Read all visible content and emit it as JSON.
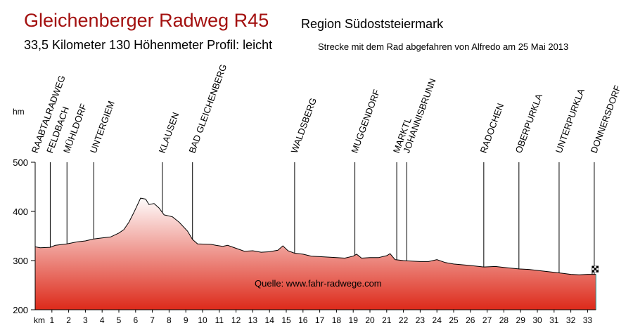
{
  "header": {
    "title": "Gleichenberger Radweg R45",
    "region": "Region Südoststeiermark",
    "subtitle": "33,5 Kilometer  130 Höhenmeter Profil: leicht",
    "ride_note": "Strecke mit dem Rad abgefahren von Alfredo am 25 Mai 2013"
  },
  "chart_data": {
    "type": "area",
    "title": "Gleichenberger Radweg R45",
    "xlabel": "km",
    "ylabel": "hm",
    "xlim": [
      0,
      33.5
    ],
    "ylim": [
      200,
      500
    ],
    "yticks": [
      200,
      300,
      400,
      500
    ],
    "xticks": [
      1,
      2,
      3,
      4,
      5,
      6,
      7,
      8,
      9,
      10,
      11,
      12,
      13,
      14,
      15,
      16,
      17,
      18,
      19,
      20,
      21,
      22,
      23,
      24,
      25,
      26,
      27,
      28,
      29,
      30,
      31,
      32,
      33
    ],
    "source_note": "Quelle: www.fahr-radwege.com",
    "colors": {
      "fill_bottom": "#dd2a1a",
      "fill_top": "#ffffff",
      "title": "#a3100f"
    },
    "profile": [
      [
        0,
        328
      ],
      [
        0.3,
        326
      ],
      [
        0.9,
        327
      ],
      [
        1.2,
        331
      ],
      [
        1.9,
        334
      ],
      [
        2.5,
        338
      ],
      [
        3,
        340
      ],
      [
        3.5,
        344
      ],
      [
        4,
        346
      ],
      [
        4.5,
        348
      ],
      [
        5,
        356
      ],
      [
        5.3,
        363
      ],
      [
        5.6,
        378
      ],
      [
        5.9,
        398
      ],
      [
        6.2,
        420
      ],
      [
        6.3,
        427
      ],
      [
        6.6,
        425
      ],
      [
        6.8,
        414
      ],
      [
        7.1,
        416
      ],
      [
        7.4,
        407
      ],
      [
        7.7,
        393
      ],
      [
        8.2,
        389
      ],
      [
        8.6,
        378
      ],
      [
        9.1,
        360
      ],
      [
        9.4,
        343
      ],
      [
        9.7,
        334
      ],
      [
        10.5,
        333
      ],
      [
        10.8,
        331
      ],
      [
        11.2,
        329
      ],
      [
        11.5,
        331
      ],
      [
        12,
        325
      ],
      [
        12.5,
        319
      ],
      [
        13,
        320
      ],
      [
        13.5,
        317
      ],
      [
        14,
        318
      ],
      [
        14.5,
        321
      ],
      [
        14.8,
        330
      ],
      [
        15.1,
        320
      ],
      [
        15.5,
        315
      ],
      [
        16,
        313
      ],
      [
        16.5,
        309
      ],
      [
        17,
        308
      ],
      [
        18,
        306
      ],
      [
        18.5,
        305
      ],
      [
        19,
        309
      ],
      [
        19.2,
        313
      ],
      [
        19.5,
        305
      ],
      [
        20,
        306
      ],
      [
        20.5,
        306
      ],
      [
        21,
        310
      ],
      [
        21.2,
        314
      ],
      [
        21.5,
        302
      ],
      [
        22,
        300
      ],
      [
        22.5,
        299
      ],
      [
        23,
        298
      ],
      [
        23.5,
        298
      ],
      [
        24,
        302
      ],
      [
        24.5,
        296
      ],
      [
        25,
        293
      ],
      [
        26,
        290
      ],
      [
        26.8,
        287
      ],
      [
        27.5,
        288
      ],
      [
        28,
        286
      ],
      [
        28.9,
        283
      ],
      [
        29.5,
        282
      ],
      [
        30,
        280
      ],
      [
        30.5,
        278
      ],
      [
        31.3,
        275
      ],
      [
        32,
        272
      ],
      [
        32.5,
        271
      ],
      [
        33,
        272
      ],
      [
        33.5,
        272
      ]
    ],
    "places": [
      {
        "name": "RAABTALRADWEG",
        "km": 0.0
      },
      {
        "name": "FELDBACH",
        "km": 0.9
      },
      {
        "name": "MÜHLDORF",
        "km": 1.9
      },
      {
        "name": "UNTERGIEM",
        "km": 3.5
      },
      {
        "name": "KLAUSEN",
        "km": 7.6
      },
      {
        "name": "BAD GLEICHENBERG",
        "km": 9.4
      },
      {
        "name": "WALDSBERG",
        "km": 15.5
      },
      {
        "name": "MUGGENDORF",
        "km": 19.1
      },
      {
        "name": "MARKTL",
        "km": 21.6
      },
      {
        "name": "JOHANNISBRUNN",
        "km": 22.2
      },
      {
        "name": "RADOCHEN",
        "km": 26.8
      },
      {
        "name": "OBERPURKLA",
        "km": 28.9
      },
      {
        "name": "UNTERPURKLA",
        "km": 31.3
      },
      {
        "name": "DONNERSDORF",
        "km": 33.4
      }
    ]
  }
}
